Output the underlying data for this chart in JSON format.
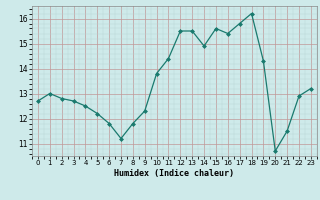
{
  "x": [
    0,
    1,
    2,
    3,
    4,
    5,
    6,
    7,
    8,
    9,
    10,
    11,
    12,
    13,
    14,
    15,
    16,
    17,
    18,
    19,
    20,
    21,
    22,
    23
  ],
  "y": [
    12.7,
    13.0,
    12.8,
    12.7,
    12.5,
    12.2,
    11.8,
    11.2,
    11.8,
    12.3,
    13.8,
    14.4,
    15.5,
    15.5,
    14.9,
    15.6,
    15.4,
    15.8,
    16.2,
    14.3,
    10.7,
    11.5,
    12.9,
    13.2
  ],
  "xlabel": "Humidex (Indice chaleur)",
  "xlim": [
    -0.5,
    23.5
  ],
  "ylim": [
    10.5,
    16.5
  ],
  "yticks": [
    11,
    12,
    13,
    14,
    15,
    16
  ],
  "xticks": [
    0,
    1,
    2,
    3,
    4,
    5,
    6,
    7,
    8,
    9,
    10,
    11,
    12,
    13,
    14,
    15,
    16,
    17,
    18,
    19,
    20,
    21,
    22,
    23
  ],
  "line_color": "#1a7a6e",
  "marker": "D",
  "marker_size": 2.0,
  "bg_color": "#ceeaea",
  "grid_major_color": "#c09898",
  "grid_minor_color": "#b8d4d4"
}
